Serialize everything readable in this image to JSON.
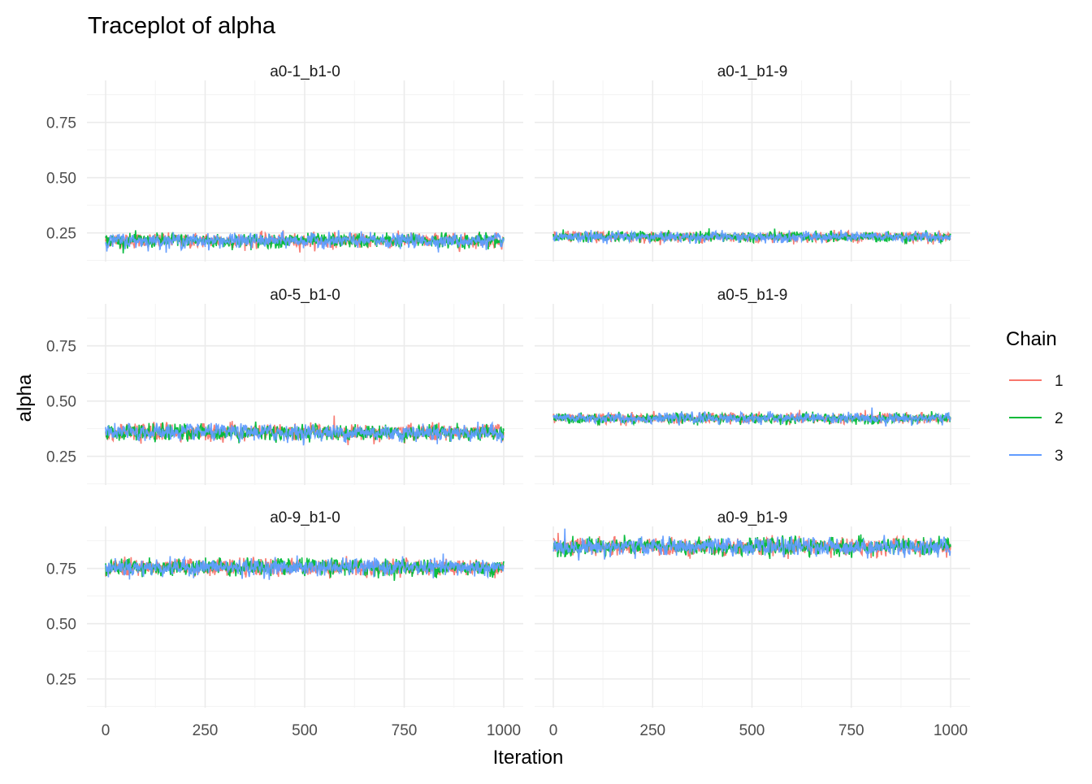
{
  "chart_data": {
    "type": "line",
    "title": "Traceplot of alpha",
    "xlabel": "Iteration",
    "ylabel": "alpha",
    "xlim": [
      0,
      1000
    ],
    "ylim": [
      0.12,
      0.94
    ],
    "x_ticks": [
      "0",
      "250",
      "500",
      "750",
      "1000"
    ],
    "y_ticks": [
      "0.25",
      "0.50",
      "0.75"
    ],
    "grid": true,
    "legend": {
      "title": "Chain",
      "position": "right",
      "entries": [
        "1",
        "2",
        "3"
      ]
    },
    "series": [
      {
        "name": "1",
        "color": "#F8766D"
      },
      {
        "name": "2",
        "color": "#00BA38"
      },
      {
        "name": "3",
        "color": "#619CFF"
      }
    ],
    "facets": [
      {
        "label": "a0-1_b1-0",
        "mean": 0.215,
        "spread": 0.022
      },
      {
        "label": "a0-1_b1-9",
        "mean": 0.232,
        "spread": 0.016
      },
      {
        "label": "a0-5_b1-0",
        "mean": 0.358,
        "spread": 0.025
      },
      {
        "label": "a0-5_b1-9",
        "mean": 0.422,
        "spread": 0.016
      },
      {
        "label": "a0-9_b1-0",
        "mean": 0.755,
        "spread": 0.026
      },
      {
        "label": "a0-9_b1-9",
        "mean": 0.848,
        "spread": 0.027
      }
    ]
  }
}
